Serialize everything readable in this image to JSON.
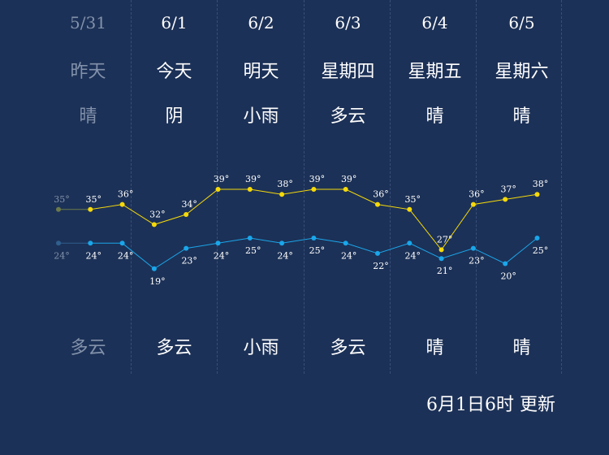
{
  "days": [
    {
      "date": "5/31",
      "weekday": "昨天",
      "day_weather": "晴",
      "night_weather": "多云",
      "past": true
    },
    {
      "date": "6/1",
      "weekday": "今天",
      "day_weather": "阴",
      "night_weather": "多云",
      "past": false
    },
    {
      "date": "6/2",
      "weekday": "明天",
      "day_weather": "小雨",
      "night_weather": "小雨",
      "past": false
    },
    {
      "date": "6/3",
      "weekday": "星期四",
      "day_weather": "多云",
      "night_weather": "多云",
      "past": false
    },
    {
      "date": "6/4",
      "weekday": "星期五",
      "day_weather": "晴",
      "night_weather": "晴",
      "past": false
    },
    {
      "date": "6/5",
      "weekday": "星期六",
      "day_weather": "晴",
      "night_weather": "晴",
      "past": false
    }
  ],
  "chart_data": {
    "type": "line",
    "series": [
      {
        "key": "high",
        "color": "#f5d90a",
        "past_color": "#6b7a4a",
        "values": [
          35,
          35,
          36,
          32,
          34,
          39,
          39,
          38,
          39,
          39,
          36,
          35,
          27,
          36,
          37,
          38
        ]
      },
      {
        "key": "low",
        "color": "#1aa6ea",
        "past_color": "#2f5f8e",
        "values": [
          24,
          24,
          24,
          19,
          23,
          24,
          25,
          24,
          25,
          24,
          22,
          24,
          21,
          23,
          20,
          25
        ]
      }
    ],
    "past_points": 1
  },
  "footer": {
    "update_text": "6月1日6时 更新"
  }
}
